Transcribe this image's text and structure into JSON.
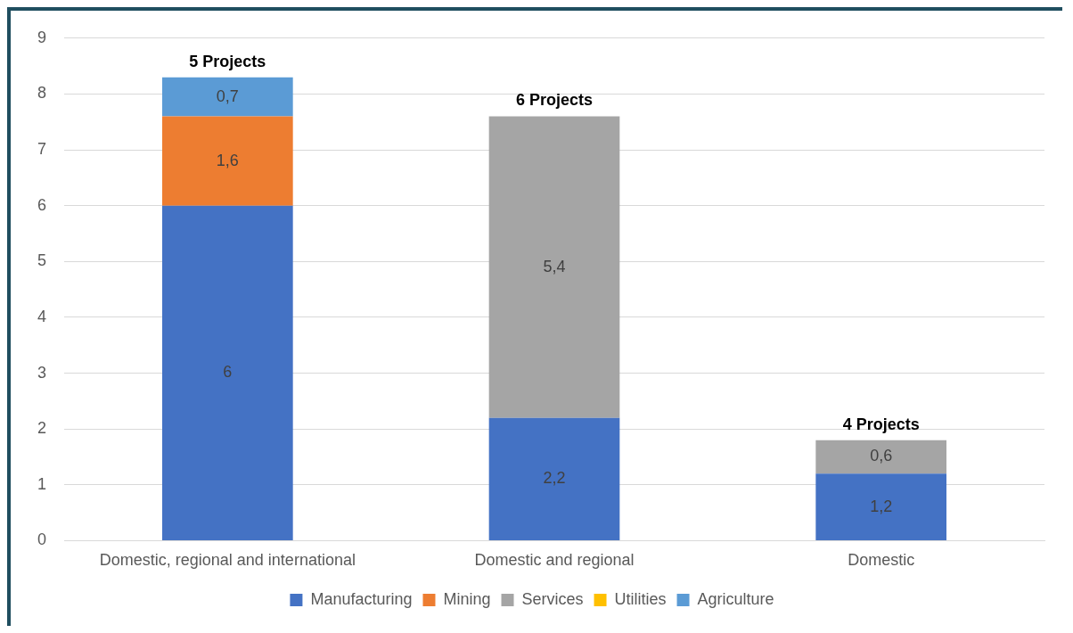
{
  "chart_data": {
    "type": "bar",
    "stacked": true,
    "categories": [
      "Domestic, regional and international",
      "Domestic and regional",
      "Domestic"
    ],
    "series": [
      {
        "name": "Manufacturing",
        "color": "#4472c4",
        "values": [
          6,
          2.2,
          1.2
        ],
        "value_labels": [
          "6",
          "2,2",
          "1,2"
        ]
      },
      {
        "name": "Mining",
        "color": "#ed7d31",
        "values": [
          1.6,
          null,
          null
        ],
        "value_labels": [
          "1,6",
          null,
          null
        ]
      },
      {
        "name": "Services",
        "color": "#a5a5a5",
        "values": [
          null,
          5.4,
          0.6
        ],
        "value_labels": [
          null,
          "5,4",
          "0,6"
        ]
      },
      {
        "name": "Utilities",
        "color": "#ffc000",
        "values": [
          null,
          null,
          null
        ]
      },
      {
        "name": "Agriculture",
        "color": "#5b9bd5",
        "values": [
          0.7,
          null,
          null
        ],
        "value_labels": [
          "0,7",
          null,
          null
        ]
      }
    ],
    "annotations": [
      {
        "text": "5 Projects",
        "x": "Domestic, regional and international",
        "y": 8.3
      },
      {
        "text": "6 Projects",
        "x": "Domestic and regional",
        "y": 7.6
      },
      {
        "text": "4 Projects",
        "x": "Domestic",
        "y": 1.8
      }
    ],
    "ylim": [
      0,
      9
    ],
    "yticks": [
      0,
      1,
      2,
      3,
      4,
      5,
      6,
      7,
      8,
      9
    ],
    "grid": "y",
    "legend": "bottom"
  }
}
